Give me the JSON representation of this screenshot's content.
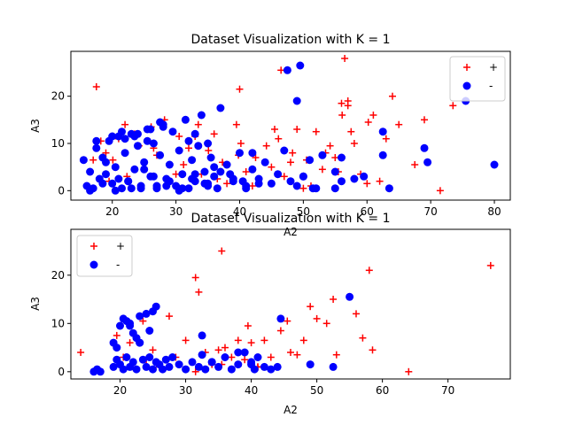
{
  "chart_data": [
    {
      "type": "scatter",
      "title": "Dataset Visualization with K = 1",
      "xlabel": "A2",
      "ylabel": "A3",
      "xlim": [
        13.5,
        82.5
      ],
      "ylim": [
        -2,
        29.5
      ],
      "xticks": [
        20,
        30,
        40,
        50,
        60,
        70,
        80
      ],
      "yticks": [
        0,
        10,
        20
      ],
      "grid": false,
      "legend_position": "top-right",
      "series": [
        {
          "name": "+",
          "marker": "plus",
          "color": "#ff0000",
          "x": [
            17.5,
            18.2,
            19.0,
            20.1,
            21.0,
            22.3,
            23.5,
            24.2,
            25.0,
            26.1,
            27.0,
            28.2,
            29.0,
            30.5,
            31.2,
            32.0,
            33.5,
            34.0,
            35.1,
            36.0,
            37.3,
            38.0,
            39.5,
            40.2,
            41.0,
            42.5,
            43.0,
            44.2,
            45.0,
            46.1,
            47.0,
            48.3,
            49.0,
            50.5,
            51.2,
            52.0,
            53.0,
            54.2,
            55.0,
            56.1,
            57.0,
            58.0,
            59.0,
            60.2,
            61.0,
            62.0,
            64.0,
            65.0,
            67.5,
            69.0,
            71.5,
            73.5,
            17.0,
            19.5,
            22.0,
            26.5,
            30.0,
            33.0,
            36.5,
            39.8,
            42.0,
            45.5,
            48.0,
            50.0,
            53.5,
            55.5,
            57.5,
            60.0,
            63.0,
            40.0,
            46.5,
            56.5,
            56.0,
            57.0
          ],
          "y": [
            22.0,
            10.5,
            8.0,
            6.5,
            11.0,
            3.0,
            12.0,
            9.5,
            4.5,
            13.5,
            7.5,
            15.0,
            2.0,
            11.5,
            5.5,
            9.0,
            14.0,
            3.5,
            8.5,
            12.0,
            6.0,
            1.5,
            14.0,
            10.0,
            4.0,
            7.0,
            2.5,
            9.5,
            5.0,
            11.0,
            3.0,
            8.0,
            13.0,
            6.5,
            1.0,
            12.5,
            4.5,
            9.5,
            7.0,
            16.0,
            19.0,
            10.0,
            3.5,
            14.5,
            16.0,
            2.0,
            20.0,
            14.0,
            5.5,
            15.0,
            0.0,
            18.0,
            6.5,
            2.0,
            14.0,
            9.0,
            3.5,
            11.5,
            2.5,
            7.5,
            1.0,
            13.0,
            6.0,
            0.5,
            8.0,
            4.0,
            12.5,
            1.5,
            11.0,
            21.5,
            25.5,
            28.0,
            18.5,
            18.0
          ]
        },
        {
          "name": "-",
          "marker": "circle",
          "color": "#0000ff",
          "x": [
            15.5,
            16.0,
            16.5,
            17.0,
            17.5,
            18.0,
            18.5,
            19.0,
            19.5,
            20.0,
            20.5,
            21.0,
            21.5,
            22.0,
            22.5,
            23.0,
            23.5,
            24.0,
            24.5,
            25.0,
            25.5,
            26.0,
            26.5,
            27.0,
            27.5,
            28.0,
            28.5,
            29.0,
            29.5,
            30.0,
            30.5,
            31.0,
            31.5,
            32.0,
            32.5,
            33.0,
            33.5,
            34.0,
            34.5,
            35.0,
            35.5,
            36.0,
            37.0,
            38.0,
            39.0,
            40.0,
            41.0,
            42.0,
            43.0,
            44.0,
            45.0,
            46.0,
            47.0,
            48.0,
            49.0,
            50.0,
            51.0,
            52.0,
            53.0,
            55.0,
            56.0,
            58.0,
            59.5,
            62.5,
            63.5,
            69.0,
            69.5,
            80.0,
            75.5,
            16.5,
            18.5,
            20.5,
            22.5,
            24.5,
            26.5,
            28.5,
            30.5,
            32.5,
            34.5,
            36.5,
            38.5,
            40.5,
            19.0,
            21.0,
            23.0,
            25.0,
            27.0,
            29.0,
            31.0,
            33.0,
            35.0,
            37.0,
            39.0,
            41.0,
            43.0,
            17.5,
            20.0,
            22.0,
            24.0,
            26.0,
            28.0,
            23.5,
            25.5,
            21.5,
            27.5,
            32.0,
            35.0,
            42.0,
            49.0,
            50.0,
            56.0,
            62.5,
            33.0,
            36.0,
            47.5,
            49.5,
            51.5,
            55.0
          ],
          "y": [
            6.5,
            1.0,
            4.0,
            0.5,
            9.0,
            2.5,
            7.0,
            3.5,
            10.5,
            1.5,
            5.0,
            11.5,
            0.5,
            8.0,
            2.0,
            12.0,
            4.5,
            9.5,
            1.0,
            6.0,
            13.0,
            3.0,
            10.0,
            0.5,
            7.5,
            14.0,
            2.5,
            5.5,
            12.5,
            1.0,
            8.5,
            3.5,
            15.0,
            0.5,
            6.5,
            2.0,
            9.5,
            16.0,
            4.0,
            1.5,
            7.0,
            3.0,
            17.5,
            5.5,
            2.0,
            8.0,
            1.0,
            4.5,
            2.5,
            6.0,
            1.5,
            3.5,
            8.5,
            2.0,
            1.0,
            3.0,
            6.5,
            0.5,
            7.5,
            4.0,
            2.0,
            2.5,
            3.0,
            12.5,
            0.5,
            9.0,
            6.0,
            5.5,
            19.0,
            0.0,
            1.5,
            0.0,
            2.0,
            0.5,
            3.0,
            1.0,
            0.0,
            2.5,
            1.5,
            0.5,
            3.5,
            2.0,
            6.0,
            2.5,
            0.5,
            4.5,
            1.0,
            2.0,
            0.5,
            3.5,
            1.0,
            4.0,
            2.5,
            0.5,
            1.5,
            10.5,
            11.5,
            11.0,
            12.0,
            13.0,
            13.5,
            11.5,
            10.5,
            12.5,
            14.5,
            10.5,
            10.0,
            8.0,
            19.0,
            3.0,
            7.0,
            7.5,
            12.0,
            5.0,
            25.5,
            26.5,
            0.5,
            0.5
          ]
        }
      ]
    },
    {
      "type": "scatter",
      "title": "Dataset Visualization with K = 1",
      "xlabel": "A2",
      "ylabel": "A3",
      "xlim": [
        12.5,
        79.5
      ],
      "ylim": [
        -1.5,
        29.5
      ],
      "xticks": [
        20,
        30,
        40,
        50,
        60,
        70
      ],
      "yticks": [
        0,
        10,
        20
      ],
      "grid": false,
      "legend_position": "top-left",
      "series": [
        {
          "name": "+",
          "marker": "plus",
          "color": "#ff0000",
          "x": [
            14.0,
            19.5,
            20.5,
            21.5,
            22.0,
            23.5,
            24.0,
            25.0,
            26.0,
            27.5,
            28.5,
            30.0,
            31.0,
            31.5,
            32.0,
            33.0,
            34.0,
            35.0,
            35.5,
            36.0,
            37.0,
            38.0,
            39.0,
            39.5,
            40.0,
            41.0,
            42.0,
            43.0,
            44.5,
            45.5,
            46.0,
            47.0,
            48.0,
            49.0,
            50.0,
            51.5,
            52.5,
            53.0,
            56.0,
            57.0,
            58.0,
            58.5,
            64.0,
            76.5,
            31.5,
            32.0,
            35.5,
            41.0
          ],
          "y": [
            4.0,
            7.5,
            3.0,
            6.0,
            1.0,
            10.5,
            2.5,
            4.5,
            1.0,
            11.5,
            3.0,
            6.5,
            2.0,
            19.5,
            16.5,
            4.0,
            1.5,
            4.5,
            25.0,
            5.0,
            3.0,
            6.5,
            2.5,
            9.5,
            6.0,
            1.0,
            6.5,
            3.0,
            8.5,
            10.5,
            4.0,
            3.5,
            6.5,
            13.5,
            11.0,
            10.0,
            15.0,
            3.5,
            12.0,
            7.0,
            21.0,
            4.5,
            0.0,
            22.0,
            0.0,
            1.0,
            1.5,
            1.0
          ]
        },
        {
          "name": "-",
          "marker": "circle",
          "color": "#0000ff",
          "x": [
            16.0,
            16.5,
            17.0,
            19.0,
            19.5,
            20.0,
            20.5,
            21.0,
            21.5,
            22.0,
            22.5,
            23.0,
            23.5,
            24.0,
            24.5,
            25.0,
            25.5,
            26.0,
            26.5,
            27.0,
            27.5,
            28.0,
            29.0,
            30.0,
            31.0,
            32.0,
            32.5,
            33.0,
            34.0,
            35.0,
            36.0,
            37.0,
            38.0,
            39.0,
            40.0,
            40.5,
            41.0,
            42.0,
            43.0,
            44.0,
            44.5,
            49.0,
            52.5,
            55.0,
            19.0,
            19.5,
            20.0,
            20.5,
            21.0,
            21.5,
            22.0,
            23.0,
            24.0,
            25.0,
            25.5,
            23.0,
            22.5,
            24.5,
            21.5,
            32.5,
            34.0,
            38.0,
            40.0
          ],
          "y": [
            0.0,
            0.5,
            0.0,
            1.0,
            2.5,
            1.5,
            0.5,
            3.0,
            1.0,
            2.0,
            0.5,
            6.0,
            2.5,
            1.0,
            3.0,
            0.5,
            2.0,
            1.5,
            0.5,
            2.5,
            1.0,
            3.0,
            1.5,
            0.5,
            2.0,
            1.0,
            3.5,
            0.5,
            2.0,
            1.0,
            3.0,
            0.5,
            1.5,
            4.0,
            2.0,
            0.5,
            3.0,
            1.0,
            0.5,
            1.0,
            11.0,
            1.5,
            1.0,
            15.5,
            6.0,
            5.0,
            9.5,
            11.0,
            10.5,
            9.5,
            8.0,
            11.5,
            12.0,
            12.5,
            13.5,
            6.0,
            7.0,
            8.5,
            10.0,
            7.5,
            2.0,
            4.0,
            1.5
          ]
        }
      ]
    }
  ]
}
